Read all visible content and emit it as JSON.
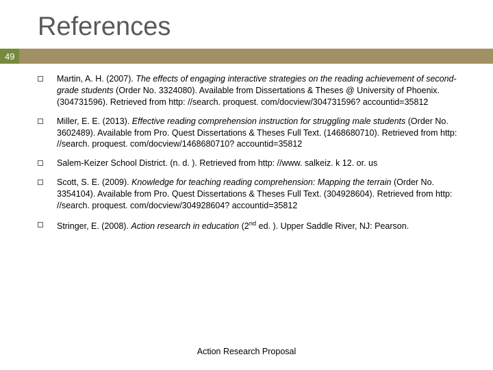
{
  "title": "References",
  "slide_number": "49",
  "colors": {
    "title_color": "#595959",
    "badge_row_bg": "#a29065",
    "badge_bg": "#77893c",
    "badge_text": "#ffffff",
    "body_text": "#000000",
    "bullet_border": "#595959",
    "background": "#ffffff"
  },
  "typography": {
    "title_fontsize": 38,
    "body_fontsize": 12.5,
    "footer_fontsize": 12.5,
    "font_family": "Arial"
  },
  "references": [
    {
      "html": "Martin, A. H. (2007). <em>The effects of engaging interactive strategies on the reading achievement of second-grade students</em> (Order No. 3324080). Available from Dissertations & Theses @ University of Phoenix. (304731596). Retrieved from http: //search. proquest. com/docview/304731596? accountid=35812"
    },
    {
      "html": "Miller, E. E. (2013). <em>Effective reading comprehension instruction for struggling male students</em> (Order No. 3602489). Available from Pro. Quest Dissertations & Theses Full Text. (1468680710). Retrieved from http: //search. proquest. com/docview/1468680710? accountid=35812"
    },
    {
      "html": "Salem-Keizer School District. (n. d. ). Retrieved from http: //www. salkeiz. k 12. or. us"
    },
    {
      "html": "Scott, S. E. (2009). <em>Knowledge for teaching reading comprehension: Mapping the terrain</em> (Order No. 3354104). Available from Pro. Quest Dissertations & Theses Full Text. (304928604). Retrieved from http: //search. proquest. com/docview/304928604? accountid=35812"
    },
    {
      "html": "Stringer, E. (2008). <em>Action research in education</em> (2<sup>nd</sup> ed. ). Upper Saddle River, NJ: Pearson."
    }
  ],
  "footer": "Action Research Proposal"
}
